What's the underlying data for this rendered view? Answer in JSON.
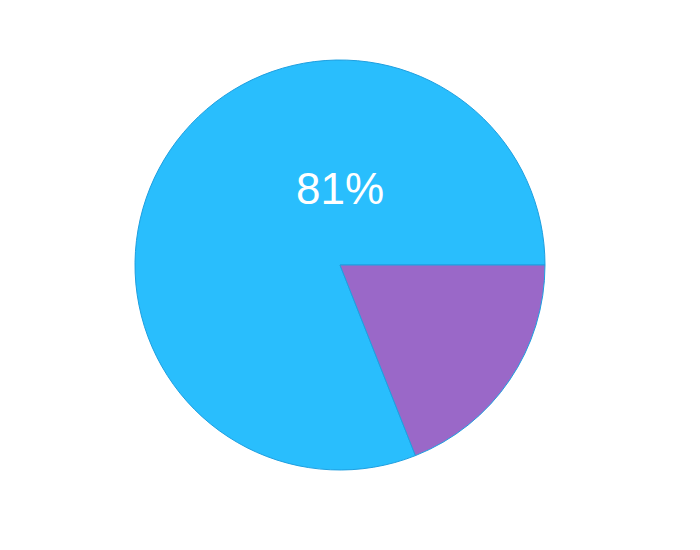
{
  "chart_data": {
    "type": "pie",
    "values": [
      81,
      19
    ],
    "colors": [
      "#29BEFD",
      "#9A68C8"
    ],
    "value_labels": [
      "81%",
      null
    ]
  }
}
